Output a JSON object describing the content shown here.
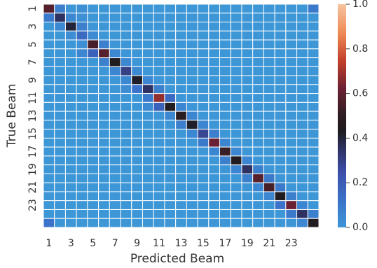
{
  "chart_data": {
    "type": "heatmap",
    "title": "",
    "xlabel": "Predicted Beam",
    "ylabel": "True Beam",
    "x_categories": [
      1,
      2,
      3,
      4,
      5,
      6,
      7,
      8,
      9,
      10,
      11,
      12,
      13,
      14,
      15,
      16,
      17,
      18,
      19,
      20,
      21,
      22,
      23,
      24,
      25
    ],
    "y_categories": [
      1,
      2,
      3,
      4,
      5,
      6,
      7,
      8,
      9,
      10,
      11,
      12,
      13,
      14,
      15,
      16,
      17,
      18,
      19,
      20,
      21,
      22,
      23,
      24,
      25
    ],
    "x_tick_labels": [
      "1",
      "3",
      "5",
      "7",
      "9",
      "11",
      "13",
      "15",
      "17",
      "19",
      "21",
      "23"
    ],
    "y_tick_labels": [
      "1",
      "3",
      "5",
      "7",
      "9",
      "11",
      "13",
      "15",
      "17",
      "19",
      "21",
      "23"
    ],
    "colorbar": {
      "min": 0.0,
      "max": 1.0,
      "ticks": [
        "0.0",
        "0.2",
        "0.4",
        "0.6",
        "0.8",
        "1.0"
      ],
      "colormap": "icefire"
    },
    "grid": "white lines between cells",
    "values": [
      [
        0.58,
        0.08,
        0,
        0.02,
        0,
        0,
        0,
        0,
        0,
        0,
        0,
        0,
        0,
        0,
        0,
        0,
        0,
        0,
        0,
        0,
        0,
        0,
        0,
        0,
        0.1
      ],
      [
        0.1,
        0.35,
        0.05,
        0.02,
        0,
        0,
        0,
        0,
        0,
        0,
        0,
        0,
        0,
        0,
        0,
        0,
        0,
        0,
        0,
        0,
        0,
        0,
        0,
        0,
        0
      ],
      [
        0,
        0.05,
        0.4,
        0.08,
        0,
        0,
        0,
        0,
        0,
        0,
        0,
        0,
        0,
        0,
        0,
        0,
        0,
        0,
        0,
        0,
        0,
        0,
        0,
        0,
        0
      ],
      [
        0,
        0,
        0.03,
        0.15,
        0.04,
        0,
        0,
        0,
        0,
        0,
        0,
        0,
        0,
        0,
        0,
        0,
        0,
        0,
        0,
        0,
        0,
        0,
        0,
        0,
        0
      ],
      [
        0,
        0,
        0,
        0.02,
        0.55,
        0.08,
        0,
        0,
        0,
        0,
        0,
        0,
        0,
        0,
        0,
        0,
        0,
        0,
        0,
        0,
        0,
        0,
        0,
        0,
        0
      ],
      [
        0,
        0,
        0,
        0.06,
        0.18,
        0.58,
        0.05,
        0,
        0,
        0,
        0,
        0,
        0,
        0,
        0,
        0,
        0,
        0,
        0,
        0,
        0,
        0,
        0,
        0,
        0
      ],
      [
        0,
        0,
        0,
        0,
        0,
        0.08,
        0.45,
        0.05,
        0,
        0,
        0,
        0,
        0,
        0,
        0,
        0,
        0,
        0,
        0,
        0,
        0,
        0,
        0,
        0,
        0
      ],
      [
        0,
        0,
        0,
        0,
        0,
        0,
        0.06,
        0.3,
        0.04,
        0,
        0,
        0,
        0,
        0,
        0,
        0,
        0,
        0,
        0,
        0,
        0,
        0,
        0,
        0,
        0
      ],
      [
        0,
        0,
        0,
        0,
        0,
        0,
        0,
        0.05,
        0.42,
        0.05,
        0,
        0,
        0,
        0,
        0,
        0,
        0,
        0,
        0,
        0,
        0,
        0,
        0,
        0,
        0
      ],
      [
        0,
        0,
        0,
        0,
        0,
        0,
        0,
        0.03,
        0.12,
        0.35,
        0.08,
        0,
        0,
        0,
        0,
        0,
        0,
        0,
        0,
        0,
        0,
        0,
        0,
        0,
        0
      ],
      [
        0,
        0,
        0,
        0,
        0,
        0,
        0,
        0,
        0,
        0.1,
        0.68,
        0.15,
        0,
        0,
        0,
        0,
        0,
        0,
        0,
        0,
        0,
        0,
        0,
        0,
        0
      ],
      [
        0,
        0,
        0,
        0,
        0,
        0,
        0,
        0,
        0,
        0.04,
        0.18,
        0.45,
        0.06,
        0,
        0,
        0,
        0,
        0,
        0,
        0,
        0,
        0,
        0,
        0,
        0
      ],
      [
        0,
        0,
        0,
        0,
        0,
        0,
        0,
        0,
        0,
        0,
        0,
        0.05,
        0.48,
        0.06,
        0,
        0,
        0,
        0,
        0,
        0,
        0,
        0,
        0,
        0,
        0
      ],
      [
        0,
        0,
        0,
        0,
        0,
        0,
        0,
        0,
        0,
        0,
        0,
        0,
        0.08,
        0.42,
        0.06,
        0,
        0,
        0,
        0,
        0,
        0,
        0,
        0,
        0,
        0
      ],
      [
        0,
        0,
        0,
        0,
        0,
        0,
        0,
        0,
        0,
        0,
        0,
        0,
        0,
        0.05,
        0.28,
        0.08,
        0,
        0,
        0,
        0,
        0,
        0,
        0,
        0,
        0
      ],
      [
        0,
        0,
        0,
        0,
        0,
        0,
        0,
        0,
        0,
        0,
        0,
        0,
        0,
        0,
        0.1,
        0.62,
        0.06,
        0,
        0,
        0,
        0,
        0,
        0,
        0,
        0
      ],
      [
        0,
        0,
        0,
        0,
        0,
        0,
        0,
        0,
        0,
        0,
        0,
        0,
        0,
        0,
        0,
        0.06,
        0.52,
        0.05,
        0,
        0,
        0,
        0,
        0,
        0,
        0
      ],
      [
        0,
        0,
        0,
        0,
        0,
        0,
        0,
        0,
        0,
        0,
        0,
        0,
        0,
        0,
        0,
        0,
        0.08,
        0.45,
        0.06,
        0,
        0,
        0,
        0,
        0,
        0
      ],
      [
        0,
        0,
        0,
        0,
        0,
        0,
        0,
        0,
        0,
        0,
        0,
        0,
        0,
        0,
        0,
        0,
        0,
        0.06,
        0.35,
        0.08,
        0,
        0,
        0,
        0,
        0
      ],
      [
        0,
        0,
        0,
        0,
        0,
        0,
        0,
        0,
        0,
        0,
        0,
        0,
        0,
        0,
        0,
        0,
        0,
        0,
        0.08,
        0.58,
        0.1,
        0,
        0,
        0,
        0
      ],
      [
        0,
        0,
        0,
        0,
        0,
        0,
        0,
        0,
        0,
        0,
        0,
        0,
        0,
        0,
        0,
        0,
        0,
        0,
        0,
        0.05,
        0.55,
        0.1,
        0,
        0,
        0
      ],
      [
        0,
        0,
        0,
        0,
        0,
        0,
        0,
        0,
        0,
        0,
        0,
        0,
        0,
        0,
        0,
        0,
        0,
        0,
        0,
        0,
        0.06,
        0.45,
        0.08,
        0,
        0
      ],
      [
        0,
        0,
        0,
        0,
        0,
        0,
        0,
        0,
        0,
        0,
        0,
        0,
        0,
        0,
        0,
        0,
        0,
        0,
        0,
        0,
        0,
        0.12,
        0.62,
        0.06,
        0
      ],
      [
        0,
        0,
        0,
        0,
        0,
        0,
        0,
        0,
        0,
        0,
        0,
        0,
        0,
        0,
        0,
        0,
        0,
        0,
        0,
        0,
        0,
        0,
        0.1,
        0.35,
        0.08
      ],
      [
        0.12,
        0,
        0,
        0,
        0,
        0,
        0,
        0,
        0,
        0,
        0,
        0,
        0,
        0,
        0,
        0,
        0,
        0,
        0,
        0,
        0,
        0,
        0,
        0.05,
        0.45
      ]
    ]
  }
}
